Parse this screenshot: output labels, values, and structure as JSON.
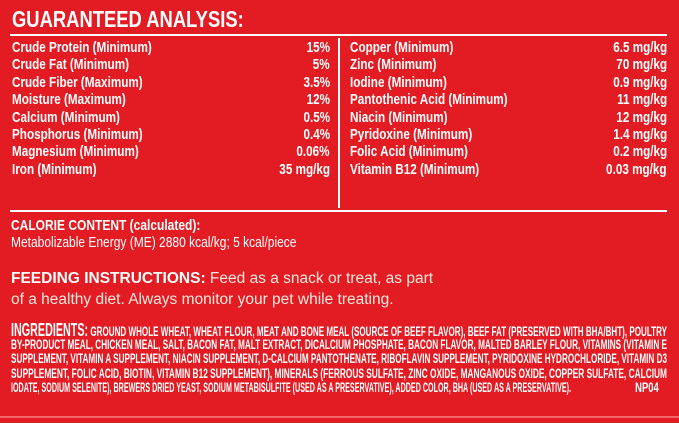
{
  "analysis": {
    "title": "GUARANTEED ANALYSIS:",
    "left": [
      {
        "label": "Crude Protein (Minimum)",
        "value": "15%"
      },
      {
        "label": "Crude Fat (Minimum)",
        "value": "5%"
      },
      {
        "label": "Crude Fiber (Maximum)",
        "value": "3.5%"
      },
      {
        "label": "Moisture (Maximum)",
        "value": "12%"
      },
      {
        "label": "Calcium (Minimum)",
        "value": "0.5%"
      },
      {
        "label": "Phosphorus (Minimum)",
        "value": "0.4%"
      },
      {
        "label": "Magnesium (Minimum)",
        "value": "0.06%"
      },
      {
        "label": "Iron (Minimum)",
        "value": "35 mg/kg"
      }
    ],
    "right": [
      {
        "label": "Copper (Minimum)",
        "value": "6.5 mg/kg"
      },
      {
        "label": "Zinc (Minimum)",
        "value": "70 mg/kg"
      },
      {
        "label": "Iodine (Minimum)",
        "value": "0.9 mg/kg"
      },
      {
        "label": "Pantothenic Acid (Minimum)",
        "value": "11 mg/kg"
      },
      {
        "label": "Niacin (Minimum)",
        "value": "12 mg/kg"
      },
      {
        "label": "Pyridoxine (Minimum)",
        "value": "1.4 mg/kg"
      },
      {
        "label": "Folic Acid (Minimum)",
        "value": "0.2 mg/kg"
      },
      {
        "label": "Vitamin B12 (Minimum)",
        "value": "0.03 mg/kg"
      }
    ]
  },
  "calorie": {
    "heading": "CALORIE CONTENT (calculated):",
    "text": "Metabolizable Energy (ME) 2880 kcal/kg; 5 kcal/piece"
  },
  "feeding": {
    "heading": "FEEDING INSTRUCTIONS:",
    "line1": " Feed as a snack or treat, as part",
    "line2": "of a healthy diet. Always monitor your pet while treating."
  },
  "ingredients": {
    "heading": "INGREDIENTS:",
    "lines": [
      " GROUND WHOLE WHEAT, WHEAT FLOUR, MEAT AND BONE MEAL (SOURCE OF BEEF FLAVOR), BEEF FAT (PRESERVED WITH BHA/BHT), POULTRY",
      "BY-PRODUCT MEAL, CHICKEN MEAL, SALT, BACON FAT, MALT EXTRACT, DICALCIUM PHOSPHATE, BACON FLAVOR, MALTED BARLEY FLOUR, VITAMINS (VITAMIN E",
      "SUPPLEMENT, VITAMIN A SUPPLEMENT, NIACIN SUPPLEMENT, D-CALCIUM PANTOTHENATE, RIBOFLAVIN SUPPLEMENT, PYRIDOXINE HYDROCHLORIDE, VITAMIN D3",
      "SUPPLEMENT, FOLIC ACID, BIOTIN, VITAMIN B12 SUPPLEMENT), MINERALS (FERROUS SULFATE, ZINC OXIDE, MANGANOUS OXIDE, COPPER SULFATE, CALCIUM",
      "IODATE, SODIUM SELENITE), BREWERS DRIED YEAST, SODIUM METABISULFITE (USED AS A PRESERVATIVE), ADDED COLOR, BHA (USED AS A PRESERVATIVE)."
    ],
    "code": "NP04"
  },
  "colors": {
    "background": "#e31b23",
    "text": "#ffffff",
    "feeding_text": "#fde9dc"
  }
}
